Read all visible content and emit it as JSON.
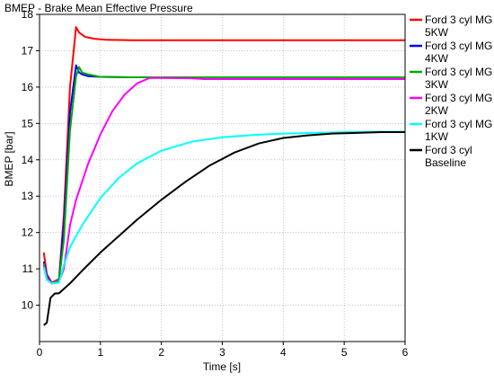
{
  "chart_data": {
    "type": "line",
    "title": "BMEP - Brake Mean Effective Pressure",
    "xlabel": "Time [s]",
    "ylabel": "BMEP [bar]",
    "xlim": [
      0,
      6
    ],
    "ylim": [
      9,
      18
    ],
    "xticks": [
      0,
      1,
      2,
      3,
      4,
      5,
      6
    ],
    "yticks": [
      10,
      11,
      12,
      13,
      14,
      15,
      16,
      17,
      18
    ],
    "grid": true,
    "legend_position": "top-right",
    "series": [
      {
        "name": "Ford 3 cyl MG 5KW",
        "color": "#ff0000",
        "points": [
          [
            0.07,
            11.45
          ],
          [
            0.12,
            10.85
          ],
          [
            0.2,
            10.62
          ],
          [
            0.32,
            10.72
          ],
          [
            0.4,
            12.5
          ],
          [
            0.5,
            16.0
          ],
          [
            0.6,
            17.65
          ],
          [
            0.65,
            17.5
          ],
          [
            0.75,
            17.38
          ],
          [
            0.9,
            17.33
          ],
          [
            1.1,
            17.3
          ],
          [
            1.5,
            17.29
          ],
          [
            2,
            17.29
          ],
          [
            3,
            17.29
          ],
          [
            4,
            17.29
          ],
          [
            5,
            17.29
          ],
          [
            6,
            17.29
          ]
        ]
      },
      {
        "name": "Ford 3 cyl MG 4KW",
        "color": "#0000ff",
        "points": [
          [
            0.07,
            11.2
          ],
          [
            0.12,
            10.8
          ],
          [
            0.2,
            10.6
          ],
          [
            0.32,
            10.7
          ],
          [
            0.4,
            12.2
          ],
          [
            0.5,
            15.3
          ],
          [
            0.6,
            16.6
          ],
          [
            0.65,
            16.4
          ],
          [
            0.7,
            16.35
          ],
          [
            0.8,
            16.3
          ],
          [
            1.0,
            16.28
          ],
          [
            1.5,
            16.27
          ],
          [
            2,
            16.27
          ],
          [
            3,
            16.27
          ],
          [
            4,
            16.27
          ],
          [
            5,
            16.27
          ],
          [
            6,
            16.27
          ]
        ]
      },
      {
        "name": "Ford 3 cyl MG 3KW",
        "color": "#00aa00",
        "points": [
          [
            0.07,
            11.15
          ],
          [
            0.12,
            10.75
          ],
          [
            0.2,
            10.6
          ],
          [
            0.32,
            10.7
          ],
          [
            0.4,
            11.8
          ],
          [
            0.5,
            14.8
          ],
          [
            0.6,
            16.3
          ],
          [
            0.65,
            16.55
          ],
          [
            0.7,
            16.4
          ],
          [
            0.8,
            16.35
          ],
          [
            1.0,
            16.28
          ],
          [
            1.5,
            16.27
          ],
          [
            2,
            16.27
          ],
          [
            3,
            16.27
          ],
          [
            4,
            16.27
          ],
          [
            5,
            16.27
          ],
          [
            6,
            16.27
          ]
        ]
      },
      {
        "name": "Ford 3 cyl MG 2KW",
        "color": "#ff00ff",
        "points": [
          [
            0.07,
            11.1
          ],
          [
            0.12,
            10.75
          ],
          [
            0.2,
            10.6
          ],
          [
            0.32,
            10.65
          ],
          [
            0.4,
            11.0
          ],
          [
            0.5,
            12.2
          ],
          [
            0.6,
            12.9
          ],
          [
            0.8,
            13.9
          ],
          [
            1.0,
            14.7
          ],
          [
            1.2,
            15.35
          ],
          [
            1.4,
            15.8
          ],
          [
            1.6,
            16.1
          ],
          [
            1.8,
            16.25
          ],
          [
            2.0,
            16.25
          ],
          [
            2.5,
            16.24
          ],
          [
            2.7,
            16.22
          ],
          [
            3,
            16.22
          ],
          [
            4,
            16.22
          ],
          [
            5,
            16.22
          ],
          [
            6,
            16.22
          ]
        ]
      },
      {
        "name": "Ford 3 cyl MG 1KW",
        "color": "#00ffff",
        "points": [
          [
            0.07,
            11.05
          ],
          [
            0.12,
            10.7
          ],
          [
            0.2,
            10.6
          ],
          [
            0.32,
            10.62
          ],
          [
            0.4,
            11.1
          ],
          [
            0.5,
            11.6
          ],
          [
            0.7,
            12.2
          ],
          [
            1.0,
            12.95
          ],
          [
            1.3,
            13.5
          ],
          [
            1.6,
            13.9
          ],
          [
            2.0,
            14.25
          ],
          [
            2.5,
            14.5
          ],
          [
            3.0,
            14.62
          ],
          [
            3.5,
            14.68
          ],
          [
            4.0,
            14.72
          ],
          [
            4.5,
            14.74
          ],
          [
            5.0,
            14.76
          ],
          [
            5.5,
            14.77
          ],
          [
            6,
            14.77
          ]
        ]
      },
      {
        "name": "Ford 3 cyl Baseline",
        "color": "#000000",
        "points": [
          [
            0.07,
            9.45
          ],
          [
            0.12,
            9.52
          ],
          [
            0.18,
            10.2
          ],
          [
            0.25,
            10.32
          ],
          [
            0.32,
            10.33
          ],
          [
            0.4,
            10.45
          ],
          [
            0.5,
            10.6
          ],
          [
            0.7,
            10.95
          ],
          [
            1.0,
            11.45
          ],
          [
            1.3,
            11.9
          ],
          [
            1.6,
            12.35
          ],
          [
            2.0,
            12.9
          ],
          [
            2.4,
            13.4
          ],
          [
            2.8,
            13.85
          ],
          [
            3.2,
            14.2
          ],
          [
            3.6,
            14.45
          ],
          [
            4.0,
            14.6
          ],
          [
            4.4,
            14.67
          ],
          [
            4.8,
            14.72
          ],
          [
            5.2,
            14.74
          ],
          [
            5.6,
            14.76
          ],
          [
            6,
            14.76
          ]
        ]
      }
    ]
  }
}
